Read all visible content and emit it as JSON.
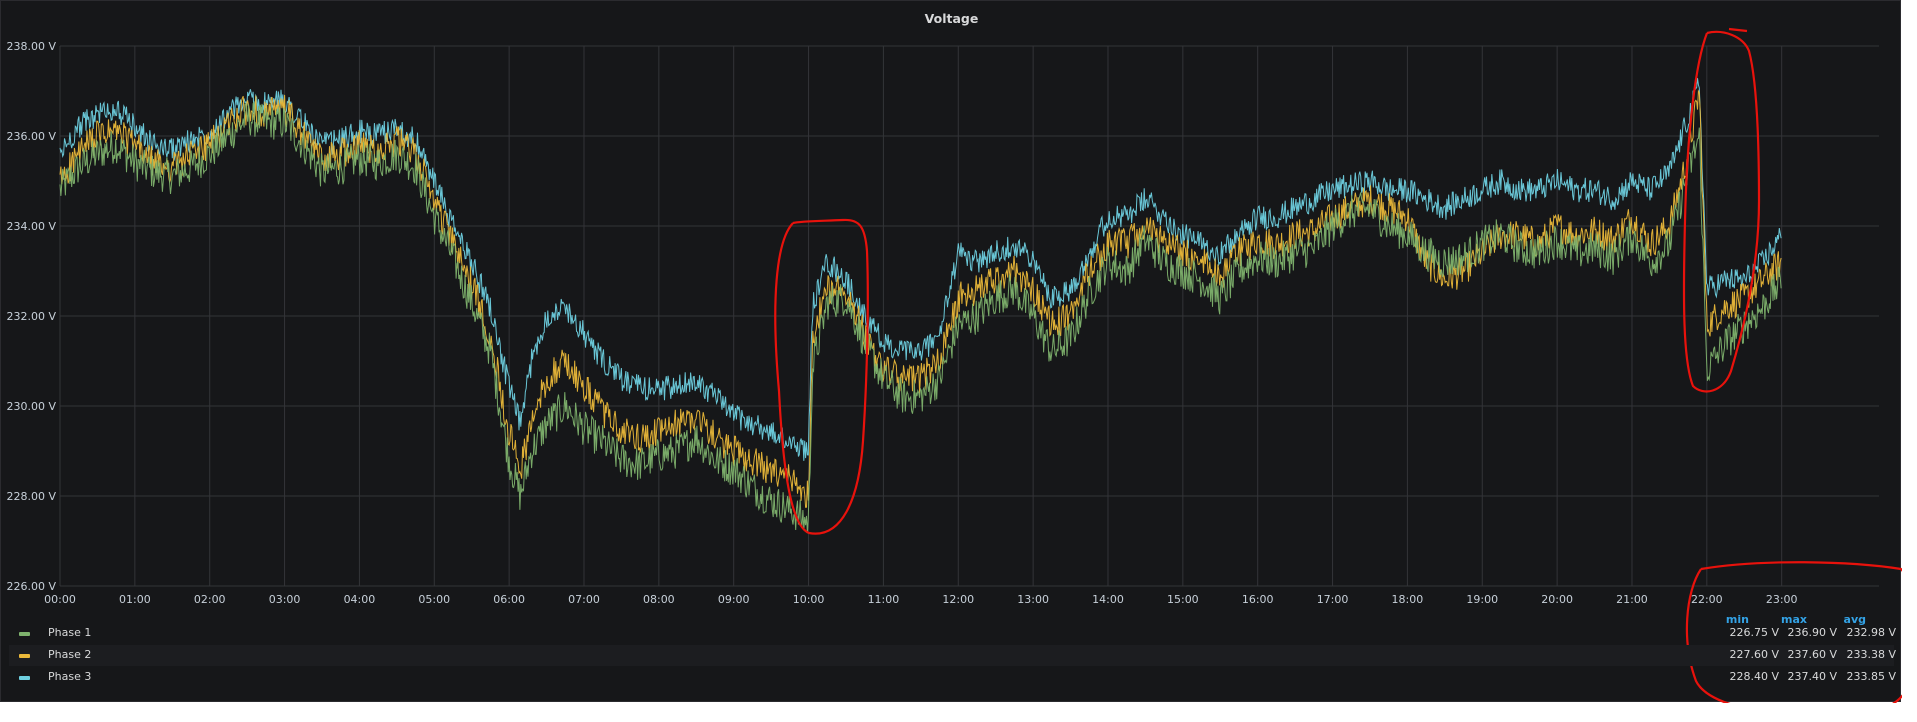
{
  "panel": {
    "title": "Voltage"
  },
  "legend": {
    "headers": {
      "min": "min",
      "max": "max",
      "avg": "avg"
    },
    "rows": [
      {
        "name": "Phase 1",
        "min": "226.75 V",
        "max": "236.90 V",
        "avg": "232.98 V",
        "color": "#7eb26d"
      },
      {
        "name": "Phase 2",
        "min": "227.60 V",
        "max": "237.60 V",
        "avg": "233.38 V",
        "color": "#eab839"
      },
      {
        "name": "Phase 3",
        "min": "228.40 V",
        "max": "237.40 V",
        "avg": "233.85 V",
        "color": "#6ed0e0"
      }
    ]
  },
  "colors": {
    "background": "#161719",
    "grid": "#333438",
    "annotation": "#e8120c",
    "legend_header": "#33a2e5"
  },
  "chart_data": {
    "type": "line",
    "title": "Voltage",
    "xlabel": "",
    "ylabel": "",
    "x_ticks": [
      "00:00",
      "01:00",
      "02:00",
      "03:00",
      "04:00",
      "05:00",
      "06:00",
      "07:00",
      "08:00",
      "09:00",
      "10:00",
      "11:00",
      "12:00",
      "13:00",
      "14:00",
      "15:00",
      "16:00",
      "17:00",
      "18:00",
      "19:00",
      "20:00",
      "21:00",
      "22:00",
      "23:00"
    ],
    "y_ticks": [
      "226.00 V",
      "228.00 V",
      "230.00 V",
      "232.00 V",
      "234.00 V",
      "236.00 V",
      "238.00 V"
    ],
    "ylim": [
      226,
      238
    ],
    "xlim": [
      0,
      24.3
    ],
    "x_unit": "hours",
    "grid": true,
    "legend_placement": "bottom",
    "x": [
      0,
      0.25,
      0.5,
      0.75,
      1,
      1.25,
      1.5,
      1.75,
      2,
      2.25,
      2.5,
      2.75,
      3,
      3.25,
      3.5,
      3.75,
      4,
      4.25,
      4.5,
      4.75,
      5,
      5.25,
      5.5,
      5.75,
      6,
      6.15,
      6.3,
      6.5,
      6.75,
      7,
      7.25,
      7.5,
      7.75,
      8,
      8.25,
      8.5,
      8.75,
      9,
      9.25,
      9.5,
      9.75,
      10,
      10.05,
      10.25,
      10.5,
      10.75,
      11,
      11.25,
      11.5,
      11.75,
      12,
      12.25,
      12.5,
      12.75,
      13,
      13.25,
      13.5,
      13.75,
      14,
      14.25,
      14.5,
      14.75,
      15,
      15.25,
      15.5,
      15.75,
      16,
      16.25,
      16.5,
      16.75,
      17,
      17.25,
      17.5,
      17.75,
      18,
      18.25,
      18.5,
      18.75,
      19,
      19.25,
      19.5,
      19.75,
      20,
      20.25,
      20.5,
      20.75,
      21,
      21.25,
      21.5,
      21.75,
      21.9,
      22.0,
      22.25,
      22.5,
      22.75,
      23
    ],
    "series": [
      {
        "name": "Phase 1",
        "values": [
          234.8,
          235.3,
          235.6,
          235.8,
          235.4,
          235.2,
          235.1,
          235.3,
          235.6,
          236.0,
          236.4,
          236.3,
          236.3,
          235.8,
          235.2,
          235.3,
          235.5,
          235.4,
          235.6,
          235.3,
          234.2,
          233.3,
          232.3,
          231.2,
          228.8,
          228.0,
          229.0,
          229.6,
          230.0,
          229.5,
          229.2,
          228.8,
          228.7,
          228.9,
          229.0,
          229.3,
          228.8,
          228.6,
          228.2,
          227.9,
          227.7,
          227.4,
          230.8,
          232.3,
          232.4,
          231.4,
          230.6,
          230.2,
          230.2,
          230.6,
          231.8,
          232.0,
          232.4,
          232.6,
          232.0,
          231.2,
          231.5,
          232.5,
          233.2,
          233.0,
          233.7,
          233.2,
          233.0,
          232.8,
          232.4,
          233.0,
          233.3,
          233.2,
          233.4,
          233.5,
          234.0,
          234.3,
          234.4,
          234.0,
          233.8,
          233.4,
          233.2,
          233.3,
          233.6,
          233.8,
          233.5,
          233.4,
          233.7,
          233.4,
          233.5,
          233.3,
          233.8,
          233.2,
          233.6,
          235.2,
          236.0,
          230.8,
          231.4,
          231.8,
          232.2,
          232.8
        ]
      },
      {
        "name": "Phase 2",
        "values": [
          235.0,
          235.6,
          236.0,
          236.1,
          235.8,
          235.4,
          235.3,
          235.6,
          235.8,
          236.3,
          236.6,
          236.5,
          236.6,
          236.0,
          235.5,
          235.6,
          235.8,
          235.7,
          235.9,
          235.6,
          234.6,
          233.6,
          232.7,
          231.6,
          229.4,
          228.6,
          229.6,
          230.6,
          231.0,
          230.4,
          229.9,
          229.4,
          229.3,
          229.4,
          229.6,
          229.8,
          229.3,
          229.0,
          228.8,
          228.5,
          228.4,
          228.0,
          231.6,
          232.6,
          232.6,
          231.6,
          230.8,
          230.6,
          230.6,
          231.0,
          232.4,
          232.6,
          232.8,
          233.0,
          232.6,
          231.8,
          232.0,
          233.0,
          233.6,
          233.6,
          234.0,
          233.6,
          233.4,
          233.2,
          232.9,
          233.4,
          233.7,
          233.6,
          233.8,
          233.9,
          234.2,
          234.4,
          234.6,
          234.4,
          234.2,
          233.2,
          232.8,
          233.0,
          233.4,
          233.8,
          233.8,
          233.6,
          234.0,
          233.8,
          233.9,
          233.7,
          234.2,
          233.6,
          234.0,
          235.6,
          237.0,
          231.8,
          232.2,
          232.4,
          232.8,
          233.2
        ]
      },
      {
        "name": "Phase 3",
        "values": [
          235.6,
          236.2,
          236.5,
          236.6,
          236.2,
          235.8,
          235.7,
          235.9,
          236.1,
          236.5,
          236.8,
          236.7,
          236.8,
          236.3,
          235.8,
          235.9,
          236.1,
          236.0,
          236.2,
          235.9,
          235.0,
          234.0,
          233.2,
          232.2,
          230.4,
          229.6,
          231.0,
          232.0,
          232.2,
          231.6,
          231.0,
          230.6,
          230.4,
          230.4,
          230.4,
          230.6,
          230.2,
          229.8,
          229.6,
          229.4,
          229.2,
          229.0,
          232.2,
          233.2,
          232.8,
          232.0,
          231.4,
          231.2,
          231.2,
          231.6,
          233.4,
          233.2,
          233.4,
          233.6,
          233.2,
          232.4,
          232.6,
          233.4,
          234.2,
          234.2,
          234.6,
          234.2,
          233.8,
          233.6,
          233.4,
          233.8,
          234.2,
          234.2,
          234.4,
          234.6,
          234.8,
          234.9,
          235.0,
          234.8,
          234.8,
          234.6,
          234.4,
          234.6,
          234.8,
          235.0,
          234.8,
          234.8,
          235.0,
          234.8,
          234.8,
          234.6,
          235.0,
          234.8,
          235.2,
          236.4,
          237.2,
          232.6,
          232.8,
          232.8,
          233.2,
          233.8
        ]
      }
    ]
  }
}
